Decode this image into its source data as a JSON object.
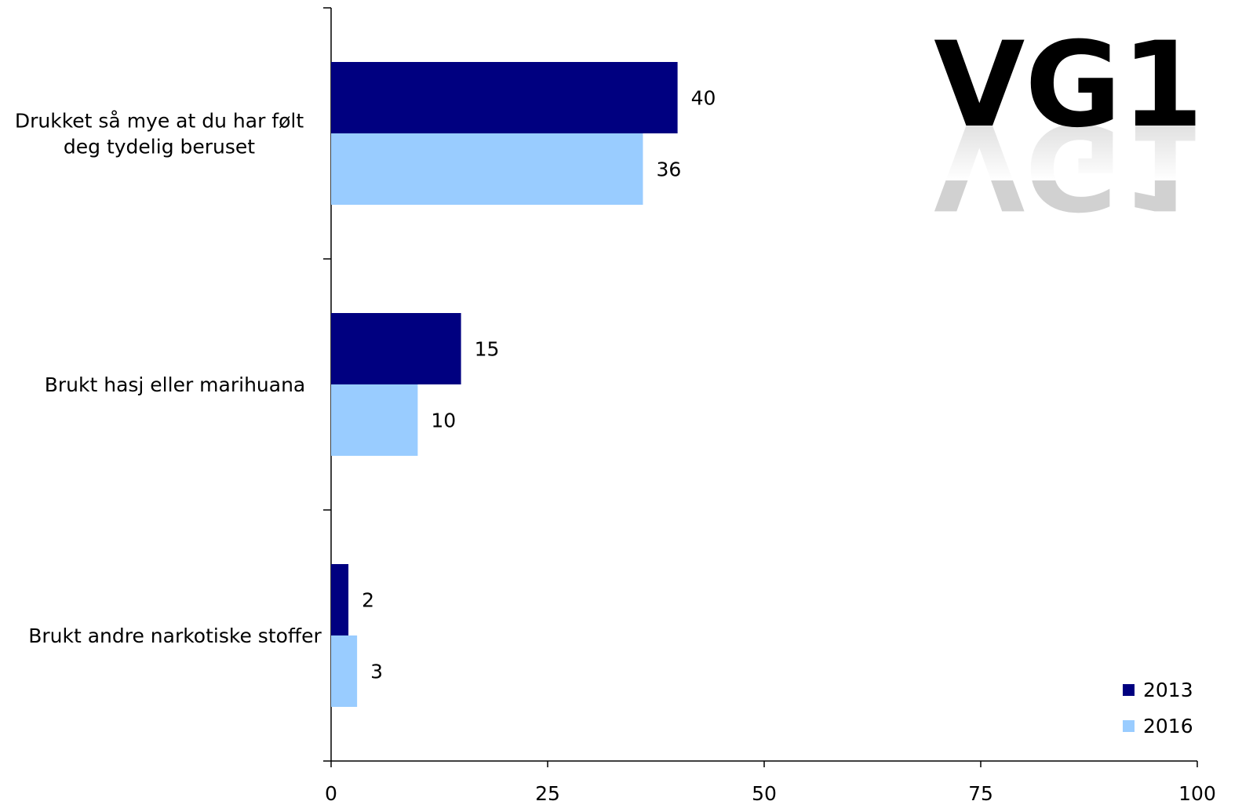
{
  "logo": {
    "text": "VG1"
  },
  "chart_data": {
    "type": "bar",
    "orientation": "horizontal",
    "categories": [
      [
        "Drukket så mye at du har følt",
        "deg tydelig beruset"
      ],
      [
        "Brukt hasj eller marihuana"
      ],
      [
        "Brukt andre narkotiske stoffer"
      ]
    ],
    "series": [
      {
        "name": "2013",
        "color": "#000080",
        "values": [
          40,
          15,
          2
        ]
      },
      {
        "name": "2016",
        "color": "#99CCFF",
        "values": [
          36,
          10,
          3
        ]
      }
    ],
    "xlim": [
      0,
      100
    ],
    "xticks": [
      "0",
      "25",
      "50",
      "75",
      "100"
    ],
    "grid": false,
    "legend": "bottom-right"
  }
}
